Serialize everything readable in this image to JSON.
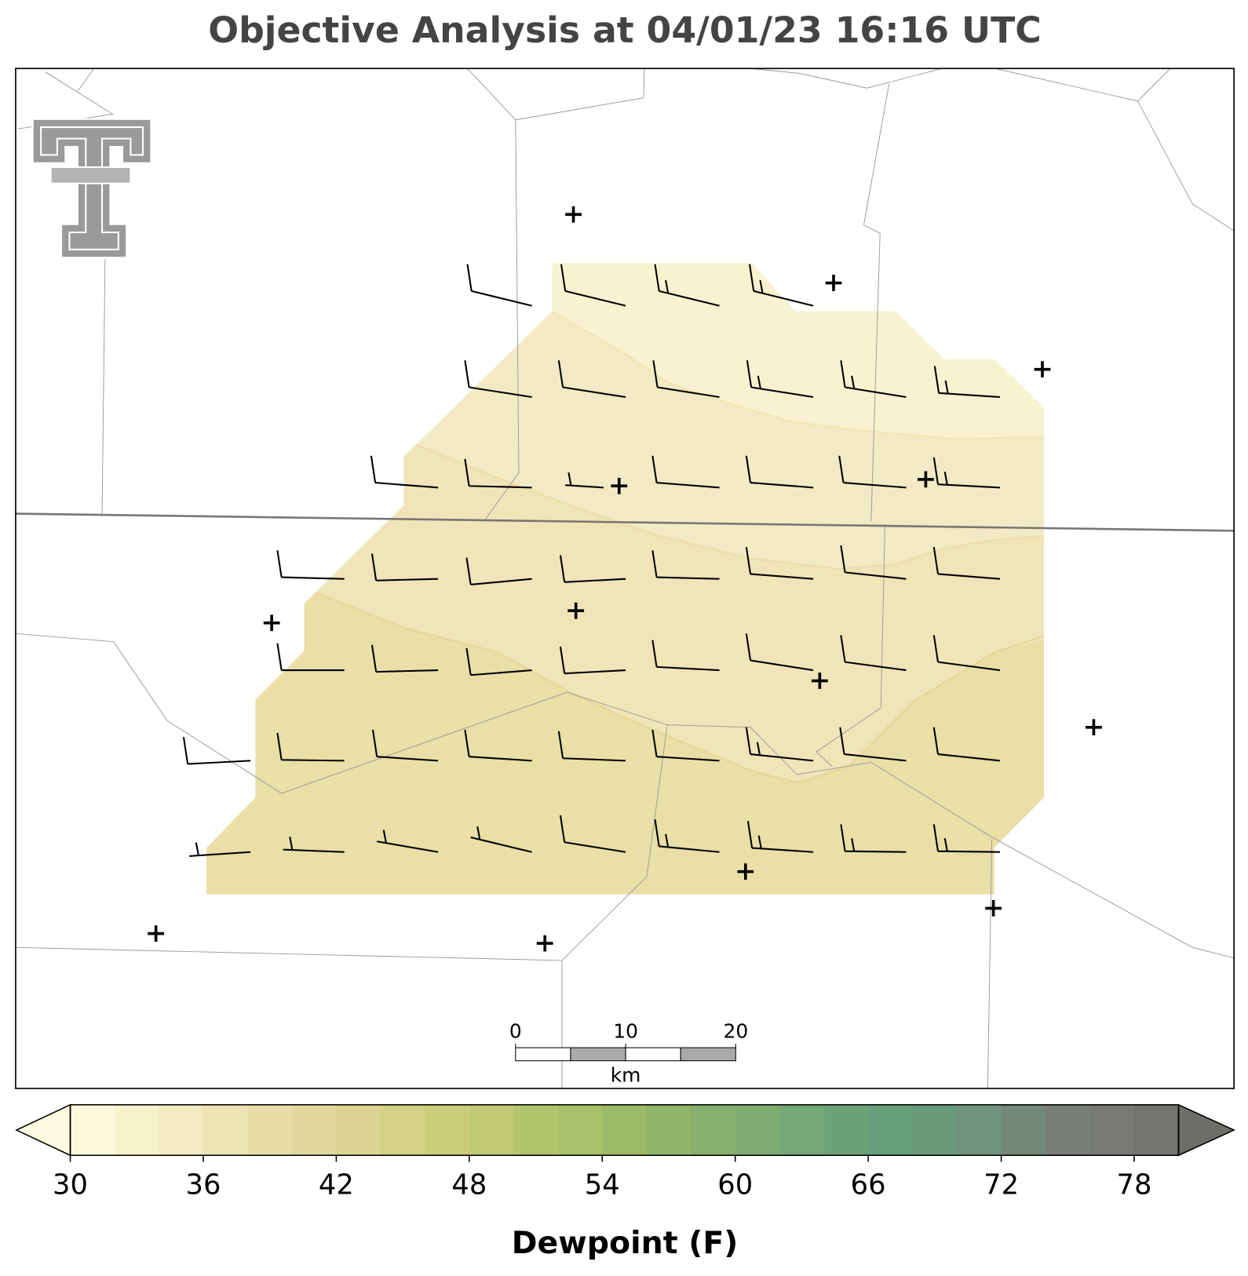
{
  "title": "Objective Analysis at 04/01/23 16:16 UTC",
  "scale_bar": {
    "lim": [
      0,
      20
    ],
    "ticks": [
      0,
      10,
      20
    ],
    "unit": "km"
  },
  "colorbar": {
    "label": "Dewpoint (F)",
    "lim": [
      30,
      80
    ],
    "ticks": [
      30,
      36,
      42,
      48,
      54,
      60,
      66,
      72,
      78
    ],
    "extend": "both",
    "under_color": "#fffbe2",
    "over_color": "#6b6f68",
    "colors": [
      "#fcf8dc",
      "#f7f1cc",
      "#f2eac0",
      "#ede3b4",
      "#e8dca8",
      "#e2d79c",
      "#dcd490",
      "#d4d184",
      "#cbcd7a",
      "#c0ca72",
      "#b3c56c",
      "#a8c068",
      "#9cba68",
      "#91b56a",
      "#86b06c",
      "#7dac70",
      "#74a774",
      "#6ca278",
      "#679f7c",
      "#6a9a7c",
      "#6f937c",
      "#74887a",
      "#777f76",
      "#767a72",
      "#72756e"
    ]
  }
}
